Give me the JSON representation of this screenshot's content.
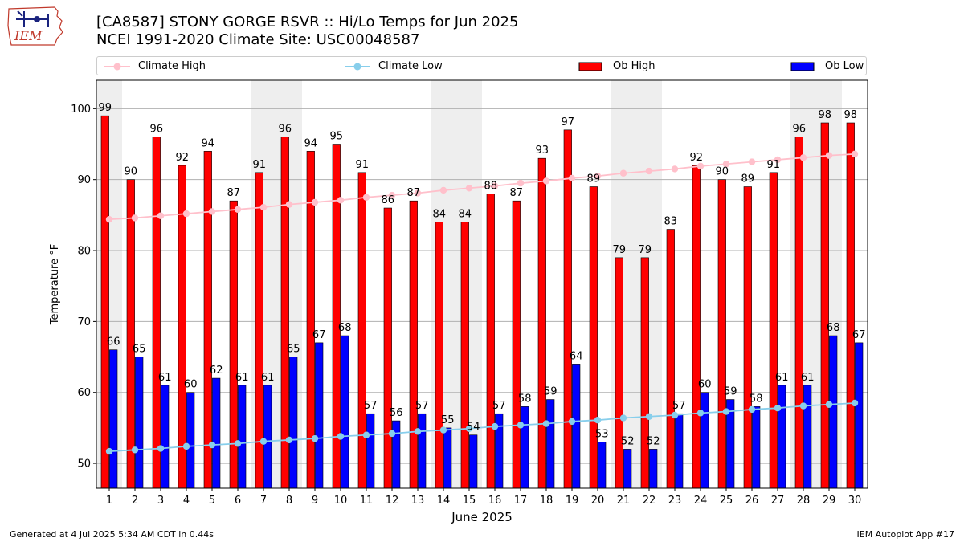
{
  "logo": {
    "text": "IEM"
  },
  "header": {
    "title_line1": "[CA8587] STONY GORGE RSVR :: Hi/Lo Temps for Jun 2025",
    "title_line2": "NCEI 1991-2020 Climate Site: USC00048587"
  },
  "legend": {
    "climate_high": "Climate High",
    "climate_low": "Climate Low",
    "ob_high": "Ob High",
    "ob_low": "Ob Low"
  },
  "colors": {
    "climate_high": "#ffc0cb",
    "climate_low": "#87ceeb",
    "ob_high": "#ff0000",
    "ob_low": "#0000ff",
    "weekend_band": "#eeeeee",
    "grid": "#b0b0b0"
  },
  "chart_data": {
    "type": "bar",
    "xlabel": "June 2025",
    "ylabel": "Temperature °F",
    "ylim": [
      46.5,
      104
    ],
    "yticks": [
      50,
      60,
      70,
      80,
      90,
      100
    ],
    "grid": "horizontal",
    "legend_position": "top",
    "categories": [
      "1",
      "2",
      "3",
      "4",
      "5",
      "6",
      "7",
      "8",
      "9",
      "10",
      "11",
      "12",
      "13",
      "14",
      "15",
      "16",
      "17",
      "18",
      "19",
      "20",
      "21",
      "22",
      "23",
      "24",
      "25",
      "26",
      "27",
      "28",
      "29",
      "30"
    ],
    "weekend_days": [
      1,
      7,
      8,
      14,
      15,
      21,
      22,
      28,
      29
    ],
    "series": [
      {
        "name": "Ob High",
        "kind": "bar",
        "values": [
          99,
          90,
          96,
          92,
          94,
          87,
          91,
          96,
          94,
          95,
          91,
          86,
          87,
          84,
          84,
          88,
          87,
          93,
          97,
          89,
          79,
          79,
          83,
          92,
          90,
          89,
          91,
          96,
          98,
          98
        ]
      },
      {
        "name": "Ob Low",
        "kind": "bar",
        "values": [
          66,
          65,
          61,
          60,
          62,
          61,
          61,
          65,
          67,
          68,
          57,
          56,
          57,
          55,
          54,
          57,
          58,
          59,
          64,
          53,
          52,
          52,
          57,
          60,
          59,
          58,
          61,
          61,
          68,
          67
        ]
      },
      {
        "name": "Climate High",
        "kind": "line",
        "values": [
          84.4,
          84.6,
          84.9,
          85.2,
          85.5,
          85.8,
          86.1,
          86.5,
          86.8,
          87.1,
          87.5,
          87.8,
          88.1,
          88.5,
          88.8,
          89.1,
          89.5,
          89.8,
          90.2,
          90.5,
          90.9,
          91.2,
          91.5,
          91.9,
          92.2,
          92.5,
          92.8,
          93.1,
          93.4,
          93.6
        ]
      },
      {
        "name": "Climate Low",
        "kind": "line",
        "values": [
          51.7,
          51.9,
          52.1,
          52.4,
          52.6,
          52.8,
          53.1,
          53.3,
          53.5,
          53.8,
          54.0,
          54.2,
          54.5,
          54.7,
          54.9,
          55.2,
          55.4,
          55.6,
          55.9,
          56.1,
          56.4,
          56.6,
          56.8,
          57.1,
          57.3,
          57.6,
          57.8,
          58.1,
          58.3,
          58.5
        ]
      }
    ]
  },
  "footer": {
    "generated": "Generated at 4 Jul 2025 5:34 AM CDT in 0.44s",
    "app": "IEM Autoplot App #17"
  }
}
